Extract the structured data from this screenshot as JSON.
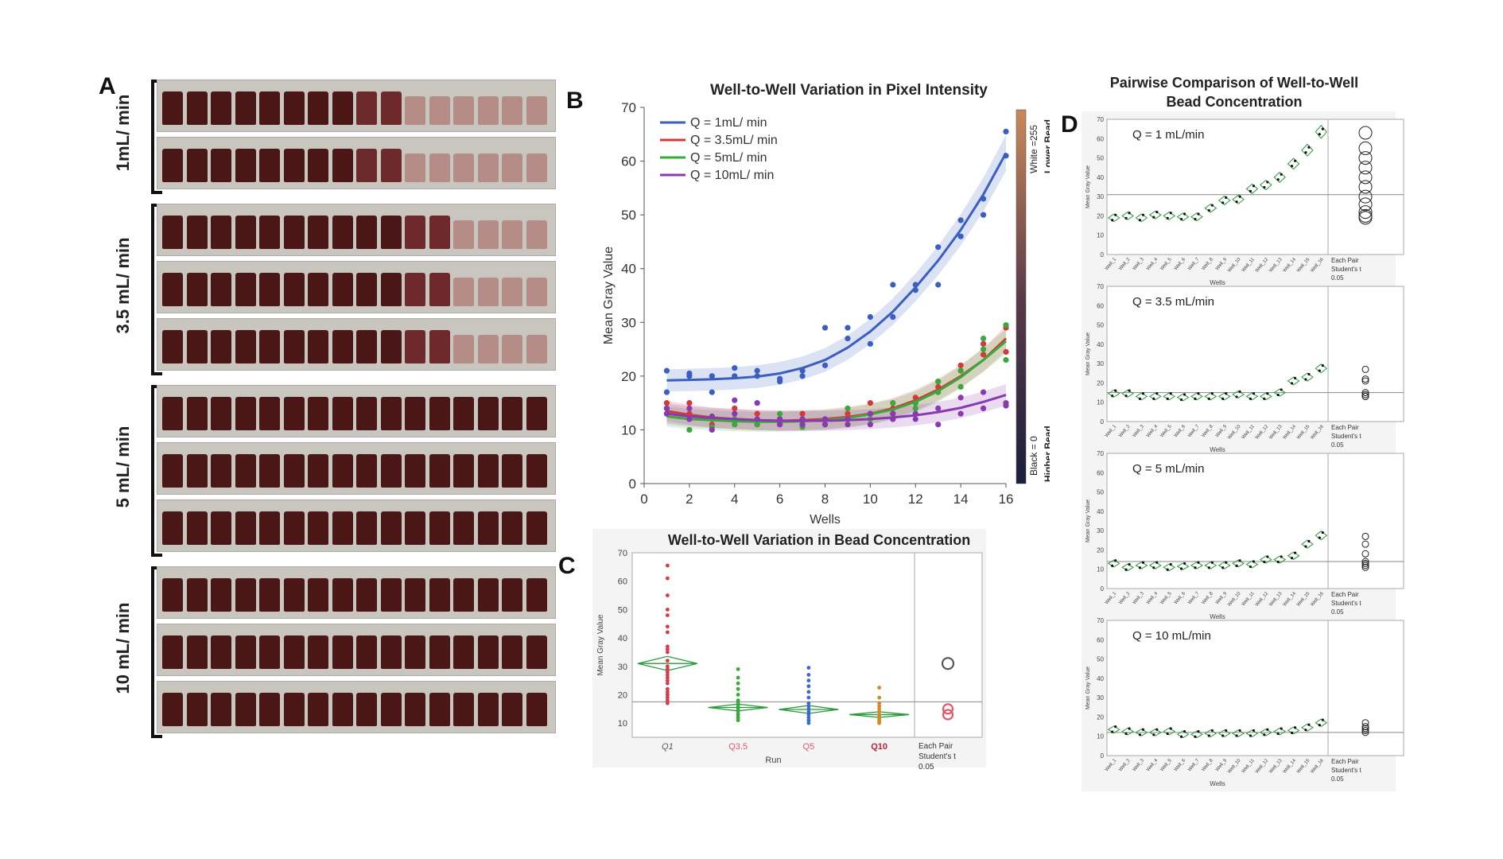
{
  "panel_labels": {
    "a": "A",
    "b": "B",
    "c": "C",
    "d": "D"
  },
  "panelA": {
    "groups": [
      {
        "label": "1mL/ min",
        "rows": 2,
        "clear_from": 11
      },
      {
        "label": "3.5 mL/ min",
        "rows": 3,
        "clear_from": 13
      },
      {
        "label": "5 mL/ min",
        "rows": 3,
        "clear_from": 99
      },
      {
        "label": "10 mL/ min",
        "rows": 3,
        "clear_from": 99
      }
    ],
    "colors": {
      "dark": "#4a1616",
      "mid": "#6e2a2a",
      "light": "#b58c86"
    }
  },
  "chart_data": [
    {
      "id": "B",
      "type": "scatter",
      "title": "Well-to-Well Variation in Pixel Intensity",
      "xlabel": "Wells",
      "ylabel": "Mean Gray Value",
      "xlim": [
        0,
        16
      ],
      "ylim": [
        0,
        70
      ],
      "xticks": [
        0,
        2,
        4,
        6,
        8,
        10,
        12,
        14,
        16
      ],
      "yticks": [
        0,
        10,
        20,
        30,
        40,
        50,
        60,
        70
      ],
      "colorbar": {
        "top_label": "White =255",
        "bottom_label": "Black = 0",
        "upper_note": "Lower Bead Concentration",
        "lower_note": "Higher Bead Concentration"
      },
      "series": [
        {
          "name": "Q = 1mL/ min",
          "color": "#3a5fc0",
          "points": [
            [
              1,
              21
            ],
            [
              1,
              17
            ],
            [
              2,
              20
            ],
            [
              2,
              20.5
            ],
            [
              3,
              17
            ],
            [
              3,
              20
            ],
            [
              4,
              20
            ],
            [
              4,
              21.5
            ],
            [
              5,
              20
            ],
            [
              5,
              21
            ],
            [
              6,
              19
            ],
            [
              6,
              19.5
            ],
            [
              7,
              20
            ],
            [
              7,
              21
            ],
            [
              8,
              22
            ],
            [
              8,
              29
            ],
            [
              9,
              29
            ],
            [
              9,
              27
            ],
            [
              10,
              26
            ],
            [
              10,
              31
            ],
            [
              11,
              31
            ],
            [
              11,
              37
            ],
            [
              12,
              36
            ],
            [
              12,
              37
            ],
            [
              13,
              37
            ],
            [
              13,
              44
            ],
            [
              14,
              46
            ],
            [
              14,
              49
            ],
            [
              15,
              53
            ],
            [
              15,
              50
            ],
            [
              16,
              61
            ],
            [
              16,
              65.5
            ]
          ],
          "fit": [
            [
              1,
              19.2
            ],
            [
              2,
              19.3
            ],
            [
              3,
              19.4
            ],
            [
              4,
              19.6
            ],
            [
              5,
              19.9
            ],
            [
              6,
              20.5
            ],
            [
              7,
              21.5
            ],
            [
              8,
              23
            ],
            [
              9,
              25.3
            ],
            [
              10,
              28.3
            ],
            [
              11,
              32
            ],
            [
              12,
              36.5
            ],
            [
              13,
              41.5
            ],
            [
              14,
              47.2
            ],
            [
              15,
              53.8
            ],
            [
              16,
              61.5
            ]
          ]
        },
        {
          "name": "Q = 3.5mL/ min",
          "color": "#d23a3a",
          "points": [
            [
              1,
              14
            ],
            [
              1,
              15
            ],
            [
              2,
              15
            ],
            [
              2,
              13
            ],
            [
              3,
              12
            ],
            [
              3,
              11
            ],
            [
              4,
              12
            ],
            [
              4,
              14
            ],
            [
              5,
              11
            ],
            [
              5,
              13
            ],
            [
              6,
              12
            ],
            [
              6,
              11
            ],
            [
              7,
              11
            ],
            [
              7,
              13
            ],
            [
              8,
              12
            ],
            [
              8,
              11
            ],
            [
              9,
              13
            ],
            [
              9,
              12
            ],
            [
              10,
              13
            ],
            [
              10,
              15
            ],
            [
              11,
              14
            ],
            [
              11,
              12
            ],
            [
              12,
              15
            ],
            [
              12,
              16
            ],
            [
              13,
              19
            ],
            [
              13,
              18
            ],
            [
              14,
              22
            ],
            [
              14,
              21
            ],
            [
              15,
              24
            ],
            [
              15,
              26
            ],
            [
              16,
              29
            ],
            [
              16,
              24.5
            ]
          ],
          "fit": [
            [
              1,
              13.5
            ],
            [
              2,
              12.8
            ],
            [
              3,
              12.3
            ],
            [
              4,
              12
            ],
            [
              5,
              11.8
            ],
            [
              6,
              11.7
            ],
            [
              7,
              11.8
            ],
            [
              8,
              12
            ],
            [
              9,
              12.4
            ],
            [
              10,
              13
            ],
            [
              11,
              14
            ],
            [
              12,
              15.5
            ],
            [
              13,
              17.5
            ],
            [
              14,
              20
            ],
            [
              15,
              23
            ],
            [
              16,
              27
            ]
          ]
        },
        {
          "name": "Q = 5mL/ min",
          "color": "#3aa83a",
          "points": [
            [
              1,
              13
            ],
            [
              1,
              14
            ],
            [
              2,
              10
            ],
            [
              2,
              12
            ],
            [
              3,
              10.5
            ],
            [
              3,
              12
            ],
            [
              4,
              11
            ],
            [
              4,
              12
            ],
            [
              5,
              11
            ],
            [
              5,
              12
            ],
            [
              6,
              13
            ],
            [
              6,
              12
            ],
            [
              7,
              10.5
            ],
            [
              7,
              12
            ],
            [
              8,
              11
            ],
            [
              8,
              12
            ],
            [
              9,
              12
            ],
            [
              9,
              14
            ],
            [
              10,
              13
            ],
            [
              10,
              12
            ],
            [
              11,
              15
            ],
            [
              11,
              13
            ],
            [
              12,
              14
            ],
            [
              12,
              15
            ],
            [
              13,
              17
            ],
            [
              13,
              19
            ],
            [
              14,
              21
            ],
            [
              14,
              18
            ],
            [
              15,
              27
            ],
            [
              15,
              25
            ],
            [
              16,
              29.5
            ],
            [
              16,
              23
            ]
          ],
          "fit": [
            [
              1,
              12.5
            ],
            [
              2,
              12
            ],
            [
              3,
              11.8
            ],
            [
              4,
              11.6
            ],
            [
              5,
              11.5
            ],
            [
              6,
              11.5
            ],
            [
              7,
              11.6
            ],
            [
              8,
              11.8
            ],
            [
              9,
              12.2
            ],
            [
              10,
              12.9
            ],
            [
              11,
              13.8
            ],
            [
              12,
              15.2
            ],
            [
              13,
              17.2
            ],
            [
              14,
              19.8
            ],
            [
              15,
              23
            ],
            [
              16,
              26.5
            ]
          ]
        },
        {
          "name": "Q = 10mL/ min",
          "color": "#8a3ab0",
          "points": [
            [
              1,
              14
            ],
            [
              1,
              13
            ],
            [
              2,
              14
            ],
            [
              2,
              12
            ],
            [
              3,
              12.5
            ],
            [
              3,
              10
            ],
            [
              4,
              15.5
            ],
            [
              4,
              13
            ],
            [
              5,
              15
            ],
            [
              5,
              12
            ],
            [
              6,
              12
            ],
            [
              6,
              11
            ],
            [
              7,
              11
            ],
            [
              7,
              12
            ],
            [
              8,
              11
            ],
            [
              8,
              12
            ],
            [
              9,
              12
            ],
            [
              9,
              11
            ],
            [
              10,
              11
            ],
            [
              10,
              13
            ],
            [
              11,
              12
            ],
            [
              11,
              13
            ],
            [
              12,
              13
            ],
            [
              12,
              12
            ],
            [
              13,
              11
            ],
            [
              13,
              14
            ],
            [
              14,
              16
            ],
            [
              14,
              13
            ],
            [
              15,
              17
            ],
            [
              15,
              14
            ],
            [
              16,
              15
            ],
            [
              16,
              14.5
            ]
          ],
          "fit": [
            [
              1,
              13
            ],
            [
              2,
              12.5
            ],
            [
              3,
              12.2
            ],
            [
              4,
              12
            ],
            [
              5,
              11.8
            ],
            [
              6,
              11.7
            ],
            [
              7,
              11.7
            ],
            [
              8,
              11.7
            ],
            [
              9,
              11.8
            ],
            [
              10,
              12
            ],
            [
              11,
              12.3
            ],
            [
              12,
              12.7
            ],
            [
              13,
              13.3
            ],
            [
              14,
              14.1
            ],
            [
              15,
              15.2
            ],
            [
              16,
              16.5
            ]
          ]
        }
      ]
    },
    {
      "id": "C",
      "type": "scatter",
      "title": "Well-to-Well Variation in Bead Concentration",
      "xlabel": "Run",
      "ylabel": "Mean Gray Value",
      "ylim": [
        5,
        70
      ],
      "yticks": [
        10,
        20,
        30,
        40,
        50,
        60,
        70
      ],
      "grand_mean": 17.5,
      "categories": [
        "Q1",
        "Q3.5",
        "Q5",
        "Q10"
      ],
      "category_colors": [
        "#555555",
        "#e05a6a",
        "#e05a6a",
        "#c0203a"
      ],
      "side_label": [
        "Each Pair",
        "Student's t",
        "0.05"
      ],
      "groups": [
        {
          "name": "Q1",
          "color": "#d83a4a",
          "mean": 31,
          "half_ci": 2.5,
          "values": [
            65.5,
            61,
            55,
            50,
            48,
            44,
            42,
            37,
            36,
            35,
            32,
            30,
            29,
            28,
            27,
            26,
            25,
            24,
            22,
            21,
            20,
            20,
            19,
            18,
            17
          ]
        },
        {
          "name": "Q3.5",
          "color": "#3aa83a",
          "mean": 15.5,
          "half_ci": 1.2,
          "values": [
            29,
            26,
            24,
            22,
            20,
            18,
            17,
            16,
            15,
            14,
            13,
            13,
            12,
            12,
            11
          ]
        },
        {
          "name": "Q5",
          "color": "#3a6ad0",
          "mean": 14.8,
          "half_ci": 1.4,
          "values": [
            29.5,
            27,
            25,
            23,
            21,
            19,
            17,
            16,
            15,
            14,
            13,
            12,
            11,
            11,
            10
          ]
        },
        {
          "name": "Q10",
          "color": "#d08a2a",
          "mean": 13,
          "half_ci": 1.0,
          "values": [
            22.5,
            19,
            17,
            16,
            15,
            14,
            13,
            12.5,
            12,
            11.5,
            11,
            10.5,
            10
          ]
        }
      ],
      "circles": [
        {
          "y": 31,
          "color": "#555555"
        },
        {
          "y": 15,
          "color": "#e05a6a"
        },
        {
          "y": 13,
          "color": "#e05a6a"
        }
      ]
    },
    {
      "id": "D",
      "type": "scatter",
      "title": "Pairwise Comparison of Well-to-Well Bead Concentration",
      "xlabel": "Wells",
      "ylabel": "Mean Gray Value",
      "ylim": [
        0,
        70
      ],
      "yticks": [
        0,
        10,
        20,
        30,
        40,
        50,
        60,
        70
      ],
      "categories": [
        "Well_1",
        "Well_2",
        "Well_3",
        "Well_4",
        "Well_5",
        "Well_6",
        "Well_7",
        "Well_8",
        "Well_9",
        "Well_10",
        "Well_11",
        "Well_12",
        "Well_13",
        "Well_14",
        "Well_15",
        "Well_16"
      ],
      "side_label": [
        "Each Pair",
        "Student's t",
        "0.05"
      ],
      "subplots": [
        {
          "label": "Q = 1 mL/min",
          "grand_mean": 31,
          "means": [
            19,
            20,
            19,
            20.5,
            20,
            19.5,
            19.5,
            24,
            28,
            28.5,
            34,
            36,
            40,
            47,
            54,
            63.5
          ],
          "circles": [
            63,
            55,
            50,
            45,
            40,
            35,
            30,
            26,
            22,
            20,
            19
          ]
        },
        {
          "label": "Q = 3.5 mL/min",
          "grand_mean": 15,
          "means": [
            14.5,
            14.5,
            13,
            13,
            13,
            12.5,
            13,
            13,
            13,
            14,
            13,
            13,
            15,
            21,
            23,
            27.5
          ],
          "circles": [
            27,
            22,
            21,
            15,
            14,
            13,
            13
          ]
        },
        {
          "label": "Q = 5 mL/min",
          "grand_mean": 14,
          "means": [
            13,
            11,
            12,
            12,
            11,
            11.5,
            12,
            12,
            12,
            13,
            12.5,
            15,
            15,
            17,
            23,
            27.5
          ],
          "circles": [
            27,
            23,
            18,
            14,
            13,
            12,
            11
          ]
        },
        {
          "label": "Q = 10 mL/min",
          "grand_mean": 12,
          "means": [
            13.5,
            12.5,
            12,
            12,
            12.5,
            11,
            11,
            11.5,
            11.5,
            11.5,
            11.5,
            12,
            12.5,
            13,
            14.5,
            17
          ],
          "circles": [
            17,
            15,
            14,
            13,
            12
          ]
        }
      ]
    }
  ]
}
